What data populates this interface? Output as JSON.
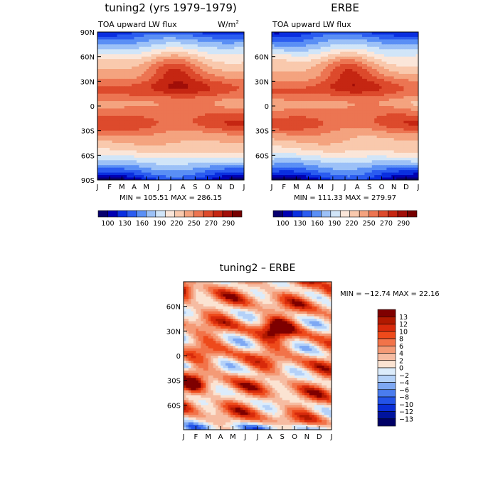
{
  "chart_data": [
    {
      "type": "heatmap",
      "title": "tuning2 (yrs 1979–1979)",
      "subtitle_left": "TOA upward LW flux",
      "units": "W/m",
      "units_exp": "2",
      "x_ticks": [
        "J",
        "F",
        "M",
        "A",
        "M",
        "J",
        "J",
        "A",
        "S",
        "O",
        "N",
        "D",
        "J"
      ],
      "y_ticks": [
        "90N",
        "60N",
        "30N",
        "0",
        "30S",
        "60S",
        "90S"
      ],
      "stats": "MIN = 105.51  MAX = 286.15",
      "min": 105.51,
      "max": 286.15,
      "colorbar_labels": [
        "100",
        "130",
        "160",
        "190",
        "220",
        "250",
        "270",
        "290"
      ]
    },
    {
      "type": "heatmap",
      "title": "ERBE",
      "subtitle_left": "TOA upward LW flux",
      "x_ticks": [
        "J",
        "F",
        "M",
        "A",
        "M",
        "J",
        "J",
        "A",
        "S",
        "O",
        "N",
        "D",
        "J"
      ],
      "y_ticks": [
        "60N",
        "30N",
        "0",
        "30S",
        "60S"
      ],
      "stats": "MIN = 111.33  MAX = 279.97",
      "min": 111.33,
      "max": 279.97,
      "colorbar_labels": [
        "100",
        "130",
        "160",
        "190",
        "220",
        "250",
        "270",
        "290"
      ]
    },
    {
      "type": "heatmap",
      "title": "tuning2 – ERBE",
      "x_ticks": [
        "J",
        "F",
        "M",
        "A",
        "M",
        "J",
        "J",
        "A",
        "S",
        "O",
        "N",
        "D",
        "J"
      ],
      "y_ticks": [
        "60N",
        "30N",
        "0",
        "30S",
        "60S"
      ],
      "stats": "MIN = −12.74  MAX =  22.16",
      "min": -12.74,
      "max": 22.16,
      "colorbar_labels": [
        "13",
        "12",
        "10",
        "8",
        "6",
        "4",
        "2",
        "0",
        "−2",
        "−4",
        "−6",
        "−8",
        "−10",
        "−12",
        "−13"
      ]
    }
  ],
  "palettes": {
    "flux": [
      "#08006f",
      "#0000b3",
      "#0a2fe0",
      "#2b5cf0",
      "#5a8ff5",
      "#9cc1f7",
      "#d1e5f8",
      "#fbe6d9",
      "#f9c9ad",
      "#f4a37f",
      "#ec7552",
      "#dd4a2c",
      "#c52612",
      "#a10e08",
      "#760000"
    ],
    "diff": [
      "#7f0000",
      "#b11900",
      "#d82a0b",
      "#ee4a1b",
      "#f27349",
      "#f49a76",
      "#f6bca2",
      "#fbe3d2",
      "#dcecfb",
      "#b4d1f8",
      "#7ea8f3",
      "#4a7cef",
      "#2353e8",
      "#0a2ed6",
      "#00139d",
      "#000066"
    ]
  }
}
